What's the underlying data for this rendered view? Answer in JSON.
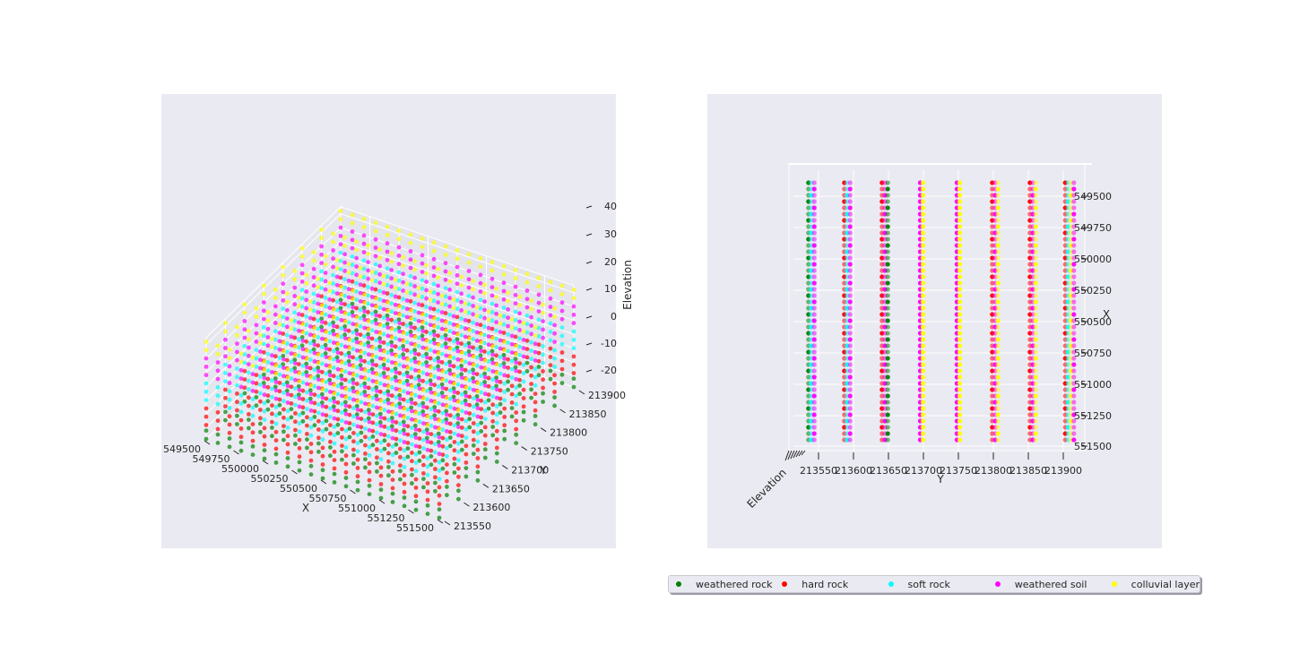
{
  "colors": {
    "weathered_rock": "#008000",
    "hard_rock": "#ff0000",
    "soft_rock": "#00ffff",
    "weathered_soil": "#ff00ff",
    "colluvial_layer": "#ffff00",
    "panel_bg": "#eaeaf2"
  },
  "legend": [
    {
      "label": "weathered rock",
      "color": "#008000"
    },
    {
      "label": "hard rock",
      "color": "#ff0000"
    },
    {
      "label": "soft rock",
      "color": "#00ffff"
    },
    {
      "label": "weathered soil",
      "color": "#ff00ff"
    },
    {
      "label": "colluvial layer",
      "color": "#ffff00"
    }
  ],
  "chart_data": [
    {
      "type": "scatter",
      "title": "",
      "xlabel": "X",
      "ylabel": "Y",
      "zlabel": "Elevation",
      "x_ticks": [
        "549500",
        "549750",
        "550000",
        "550250",
        "550500",
        "550750",
        "551000",
        "551250",
        "551500"
      ],
      "y_ticks": [
        "213550",
        "213600",
        "213650",
        "213700",
        "213750",
        "213800",
        "213850",
        "213900"
      ],
      "z_ticks": [
        "-20",
        "-10",
        "0",
        "10",
        "20",
        "30",
        "40"
      ],
      "xlim": [
        549500,
        551500
      ],
      "ylim": [
        213550,
        213900
      ],
      "zlim": [
        -25,
        45
      ],
      "grid": true,
      "view": "perspective",
      "series": [
        {
          "name": "weathered rock",
          "elevation_layers": [
            -28,
            -22
          ]
        },
        {
          "name": "hard rock",
          "elevation_layers": [
            -18,
            -12,
            -6
          ]
        },
        {
          "name": "soft rock",
          "elevation_layers": [
            0,
            6,
            12
          ]
        },
        {
          "name": "weathered soil",
          "elevation_layers": [
            18,
            24,
            30
          ]
        },
        {
          "name": "colluvial layer",
          "elevation_layers": [
            36,
            42
          ]
        }
      ]
    },
    {
      "type": "scatter",
      "title": "",
      "xlabel": "Y",
      "ylabel": "X",
      "zlabel": "Elevation",
      "x_ticks": [
        "213550",
        "213600",
        "213650",
        "213700",
        "213750",
        "213800",
        "213850",
        "213900"
      ],
      "y_ticks": [
        "549500",
        "549750",
        "550000",
        "550250",
        "550500",
        "550750",
        "551000",
        "551250",
        "551500"
      ],
      "grid": true,
      "view": "top",
      "columns_y": [
        213535,
        213590,
        213645,
        213700,
        213750,
        213805,
        213860,
        213915
      ],
      "column_colors": [
        [
          "#008000",
          "#00ffff",
          "#ff00ff"
        ],
        [
          "#ff0000",
          "#00ffff",
          "#ff00ff"
        ],
        [
          "#ff0000",
          "#ff00ff",
          "#008000"
        ],
        [
          "#ff00ff",
          "#ffff00"
        ],
        [
          "#ff00ff",
          "#ffff00"
        ],
        [
          "#ff0000",
          "#ff00ff",
          "#ffff00"
        ],
        [
          "#ff0000",
          "#ff00ff",
          "#ffff00"
        ],
        [
          "#ff0000",
          "#00ffff",
          "#ffff00",
          "#ff00ff"
        ]
      ]
    }
  ]
}
